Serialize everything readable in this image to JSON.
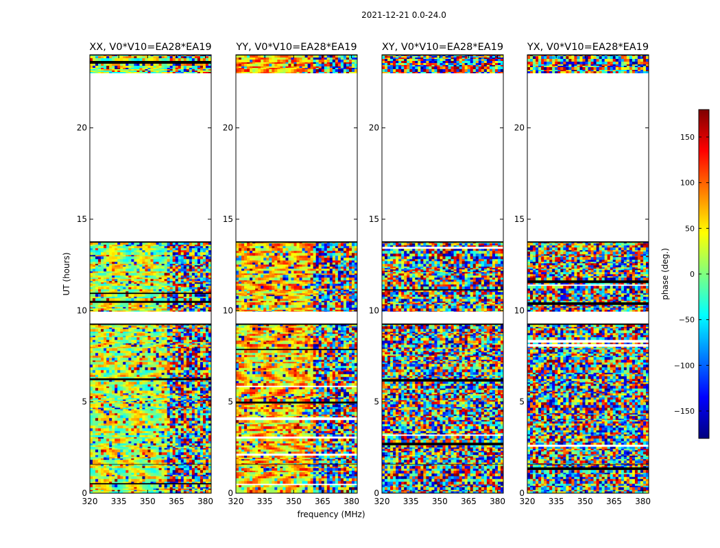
{
  "figure_title": "2021-12-21 0.0-24.0",
  "chart_data": {
    "type": "heatmap",
    "title": "2021-12-21 0.0-24.0",
    "xlabel": "frequency (MHz)",
    "ylabel": "UT (hours)",
    "xlim": [
      320,
      383
    ],
    "ylim": [
      0,
      24
    ],
    "xticks": [
      320,
      335,
      350,
      365,
      380
    ],
    "yticks": [
      0,
      5,
      10,
      15,
      20
    ],
    "colorbar": {
      "label": "phase (deg.)",
      "range": [
        -180,
        180
      ],
      "ticks": [
        150,
        100,
        50,
        0,
        -50,
        -100,
        -150
      ],
      "tick_labels": [
        "150",
        "100",
        "50",
        "0",
        "−50",
        "−100",
        "−150"
      ],
      "colormap": "jet",
      "colors": [
        "#00007f",
        "#0000ff",
        "#007fff",
        "#00ffff",
        "#7fff7f",
        "#ffff00",
        "#ff7f00",
        "#ff0000",
        "#7f0000"
      ]
    },
    "panels": [
      {
        "title": "XX, V0*V10=EA28*EA19",
        "phase_pattern": "coherent fringes, green-yellow at low frequencies"
      },
      {
        "title": "YY, V0*V10=EA28*EA19",
        "phase_pattern": "coherent fringes, orange-yellow at low frequencies"
      },
      {
        "title": "XY, V0*V10=EA28*EA19",
        "phase_pattern": "noise"
      },
      {
        "title": "YX, V0*V10=EA28*EA19",
        "phase_pattern": "noise"
      }
    ],
    "data_segments_ut": [
      [
        0.0,
        1.6
      ],
      [
        1.6,
        9.25
      ],
      [
        9.95,
        13.75
      ],
      [
        23.0,
        24.0
      ]
    ],
    "blank_ut": [
      [
        9.25,
        9.95
      ],
      [
        13.75,
        23.0
      ]
    ]
  }
}
